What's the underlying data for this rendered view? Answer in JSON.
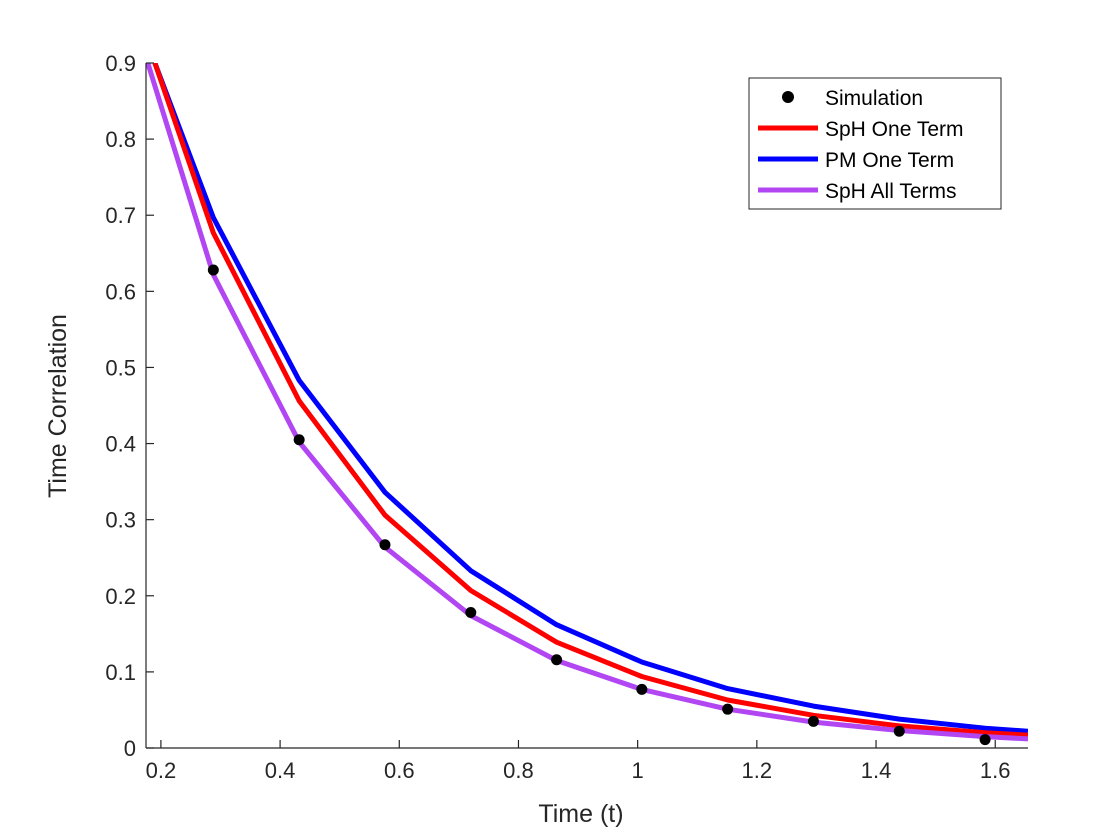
{
  "chart_data": {
    "type": "line",
    "title": "",
    "xlabel": "Time (t)",
    "ylabel": "Time Correlation",
    "xlim": [
      0.175,
      1.655
    ],
    "ylim": [
      0,
      0.9
    ],
    "xticks": [
      0.2,
      0.4,
      0.6,
      0.8,
      1,
      1.2,
      1.4,
      1.6
    ],
    "xtick_labels": [
      "0.2",
      "0.4",
      "0.6",
      "0.8",
      "1",
      "1.2",
      "1.4",
      "1.6"
    ],
    "yticks": [
      0,
      0.1,
      0.2,
      0.3,
      0.4,
      0.5,
      0.6,
      0.7,
      0.8,
      0.9
    ],
    "ytick_labels": [
      "0",
      "0.1",
      "0.2",
      "0.3",
      "0.4",
      "0.5",
      "0.6",
      "0.7",
      "0.8",
      "0.9"
    ],
    "grid": false,
    "legend_position": "top-right",
    "series": [
      {
        "name": "Simulation",
        "kind": "scatter",
        "color": "#000000",
        "x": [
          0.288,
          0.432,
          0.576,
          0.72,
          0.864,
          1.007,
          1.151,
          1.295,
          1.439,
          1.583
        ],
        "y": [
          0.628,
          0.405,
          0.267,
          0.178,
          0.116,
          0.077,
          0.051,
          0.035,
          0.022,
          0.011
        ]
      },
      {
        "name": "SpH One Term",
        "kind": "line",
        "color": "#ff0000",
        "x": [
          0.19,
          0.288,
          0.432,
          0.576,
          0.72,
          0.864,
          1.007,
          1.151,
          1.295,
          1.439,
          1.583,
          1.655
        ],
        "y": [
          0.9,
          0.677,
          0.456,
          0.306,
          0.207,
          0.139,
          0.094,
          0.063,
          0.043,
          0.029,
          0.02,
          0.017
        ]
      },
      {
        "name": "PM One Term",
        "kind": "line",
        "color": "#0000ff",
        "x": [
          0.19,
          0.288,
          0.432,
          0.576,
          0.72,
          0.864,
          1.007,
          1.151,
          1.295,
          1.439,
          1.583,
          1.655
        ],
        "y": [
          0.9,
          0.697,
          0.483,
          0.336,
          0.233,
          0.162,
          0.113,
          0.078,
          0.055,
          0.038,
          0.026,
          0.022
        ]
      },
      {
        "name": "SpH All Terms",
        "kind": "line",
        "color": "#b146f2",
        "x": [
          0.178,
          0.288,
          0.432,
          0.576,
          0.72,
          0.864,
          1.007,
          1.151,
          1.295,
          1.439,
          1.583,
          1.655
        ],
        "y": [
          0.9,
          0.622,
          0.402,
          0.264,
          0.174,
          0.115,
          0.077,
          0.051,
          0.034,
          0.023,
          0.015,
          0.012
        ]
      }
    ]
  }
}
